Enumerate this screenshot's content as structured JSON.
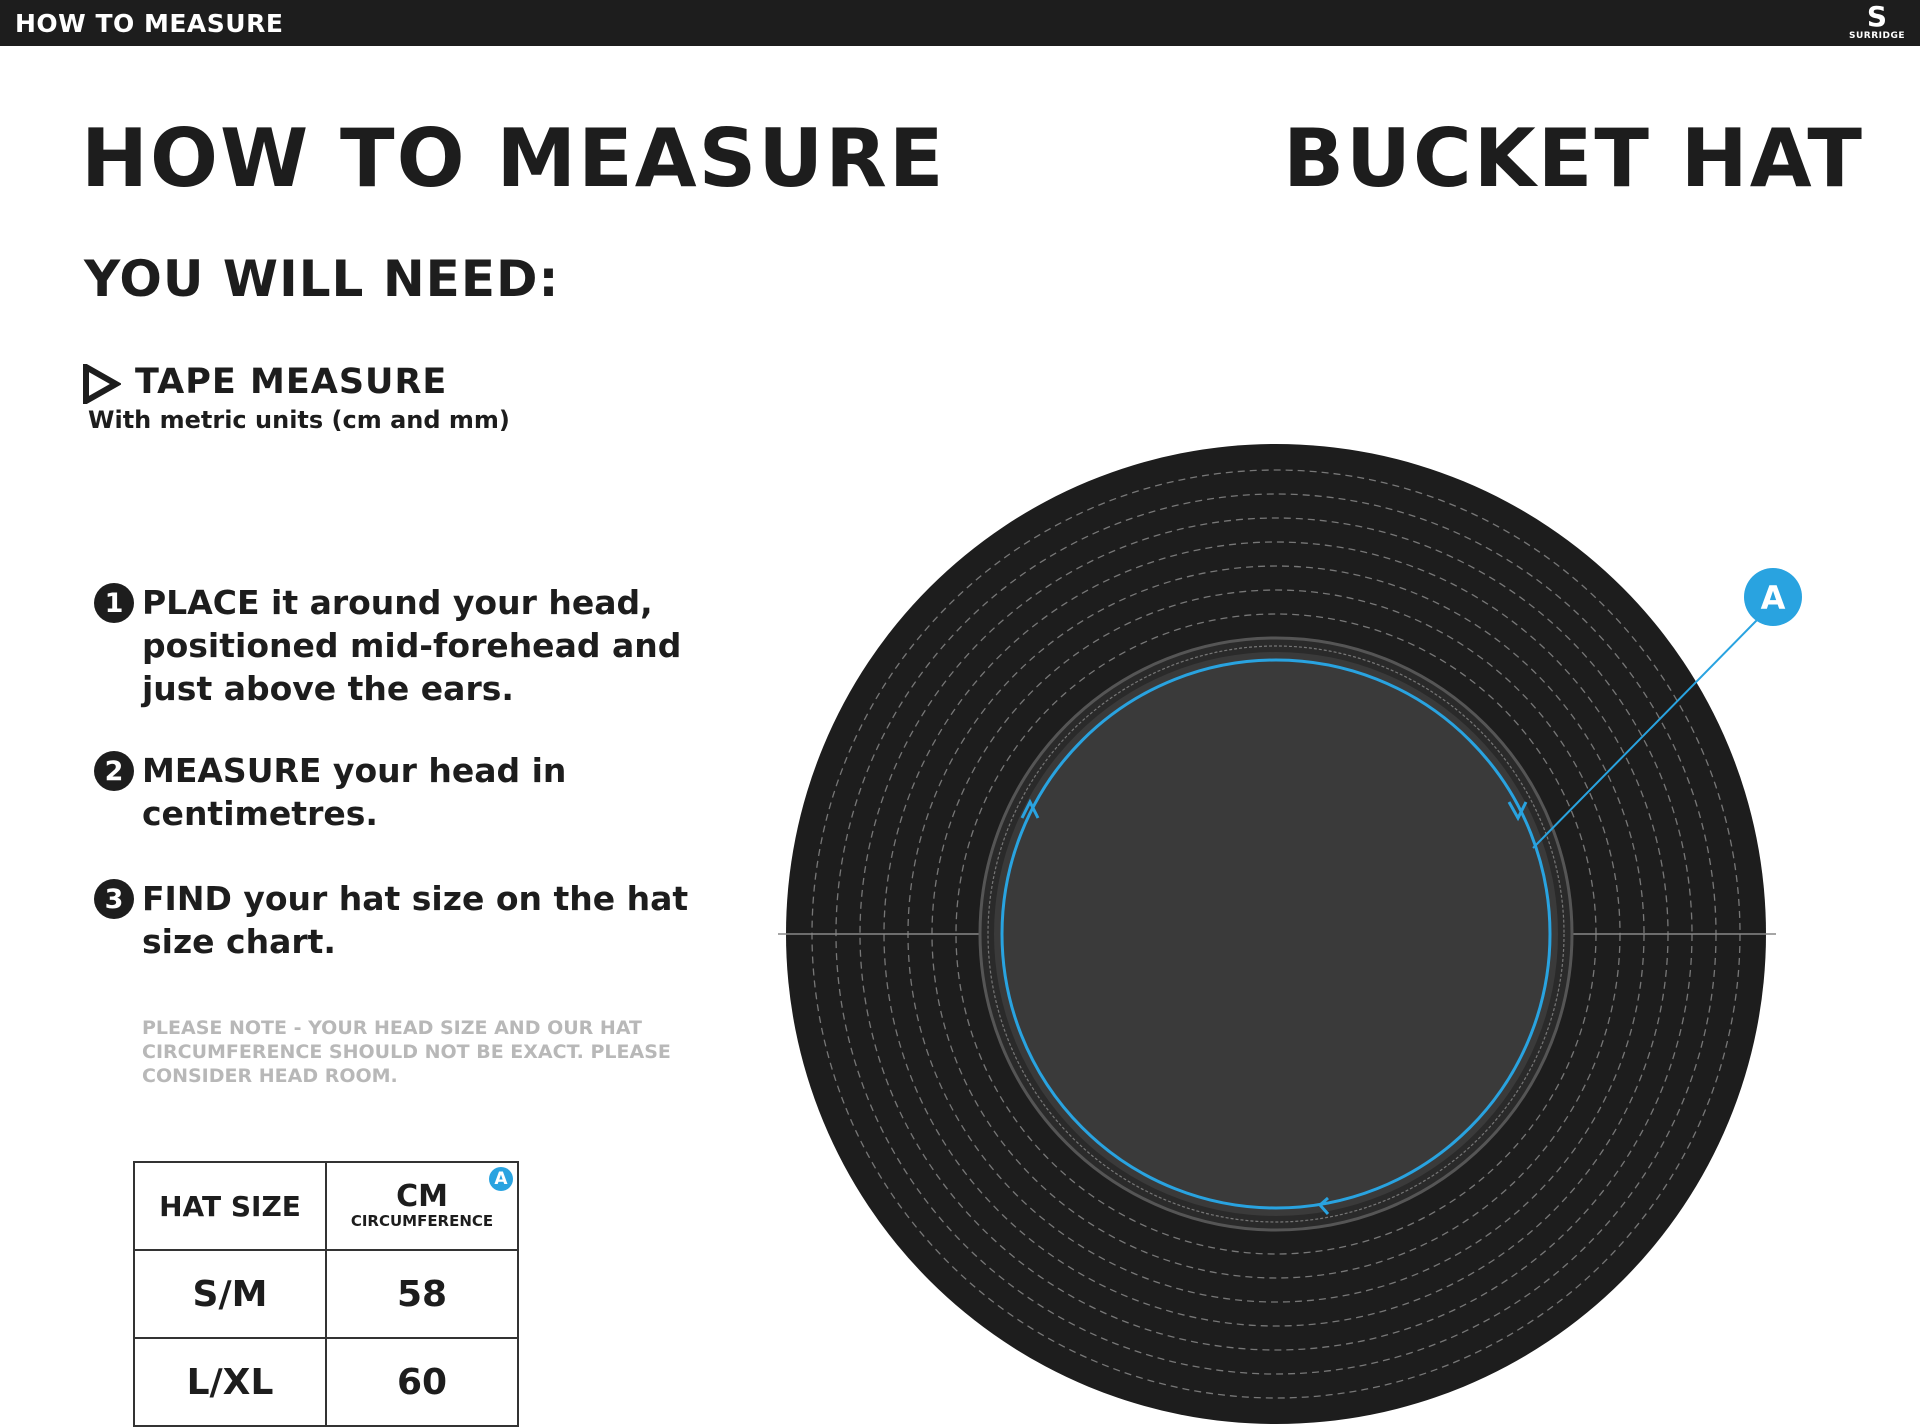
{
  "header": {
    "title": "HOW TO MEASURE",
    "logo": "SURRIDGE"
  },
  "titles": {
    "left": "HOW TO MEASURE",
    "right": "BUCKET HAT"
  },
  "need": {
    "heading": "YOU WILL NEED:",
    "item": "TAPE MEASURE",
    "item_sub": "With metric units (cm and mm)"
  },
  "steps": [
    {
      "num": "1",
      "text": "PLACE it around your head, positioned mid-forehead and just above the ears."
    },
    {
      "num": "2",
      "text": "MEASURE your head in centimetres."
    },
    {
      "num": "3",
      "text": "FIND your hat size on the hat size chart."
    }
  ],
  "note": "PLEASE NOTE - YOUR HEAD SIZE AND OUR HAT CIRCUMFERENCE SHOULD NOT BE EXACT. PLEASE CONSIDER HEAD ROOM.",
  "table": {
    "col1": "HAT SIZE",
    "col2": "CM",
    "col2_sub": "CIRCUMFERENCE",
    "badge": "A",
    "rows": [
      {
        "size": "S/M",
        "cm": "58"
      },
      {
        "size": "L/XL",
        "cm": "60"
      }
    ]
  },
  "diagram": {
    "marker": "A"
  },
  "colors": {
    "dark": "#1d1d1d",
    "accent": "#29a3e0",
    "crown": "#3a3a3a"
  }
}
